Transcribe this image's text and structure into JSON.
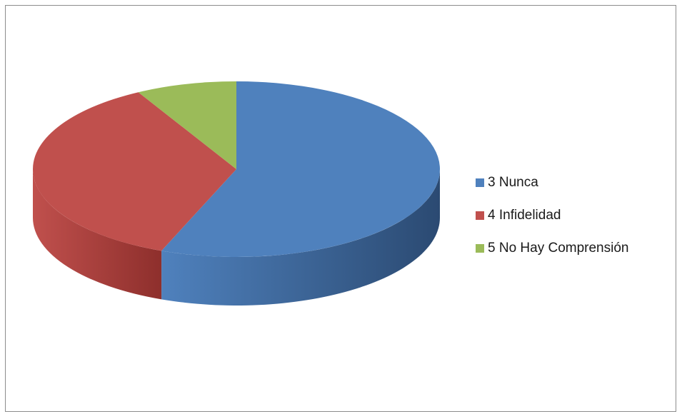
{
  "chart_data": {
    "type": "pie",
    "style": "3d",
    "title": "",
    "series": [
      {
        "name": "3 Nunca",
        "value": 14,
        "color": "#4F81BD",
        "side_color": "#2B4A72"
      },
      {
        "name": "4 Infidelidad",
        "value": 9,
        "color": "#C0504D",
        "side_color": "#8E2F2C"
      },
      {
        "name": "5 No Hay Comprensión",
        "value": 2,
        "color": "#9BBB59",
        "side_color": "#6F8A3A"
      }
    ],
    "legend_position": "right"
  }
}
